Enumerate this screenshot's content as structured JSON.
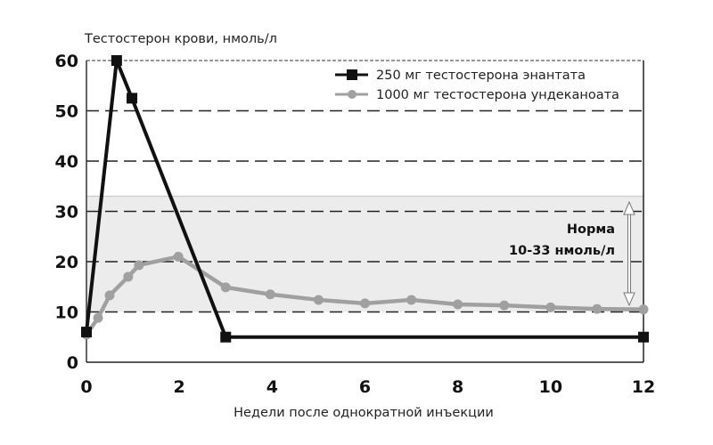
{
  "chart_data": {
    "type": "line",
    "title": "",
    "ylabel": "Тестостерон крови, нмоль/л",
    "xlabel": "Недели после однократной инъекции",
    "xlim": [
      0,
      12
    ],
    "ylim": [
      0,
      60
    ],
    "x_ticks": [
      0,
      2,
      4,
      6,
      8,
      10,
      12
    ],
    "y_ticks": [
      0,
      10,
      20,
      30,
      40,
      50,
      60
    ],
    "grid": "horizontal dashed",
    "legend_position": "upper right",
    "series": [
      {
        "name": "250 мг тестостерона энантата",
        "color": "#111111",
        "marker": "square",
        "x": [
          0,
          0.65,
          0.98,
          3,
          12
        ],
        "values": [
          6,
          60,
          52.5,
          5,
          5
        ]
      },
      {
        "name": "1000 мг тестостерона ундеканоата",
        "color": "#a0a0a0",
        "marker": "circle",
        "x": [
          0,
          0.25,
          0.5,
          0.9,
          1.13,
          1.98,
          3,
          3.96,
          5,
          6,
          7,
          8,
          9,
          10,
          11,
          12
        ],
        "values": [
          5.5,
          8.8,
          13.3,
          17,
          19.3,
          21,
          14.9,
          13.5,
          12.4,
          11.7,
          12.4,
          11.5,
          11.3,
          10.9,
          10.6,
          10.5
        ]
      }
    ],
    "annotations": [
      {
        "type": "band",
        "y_from": 10,
        "y_to": 33,
        "color": "#ececec",
        "label_line1": "Норма",
        "label_line2": "10-33 нмоль/л"
      }
    ]
  }
}
